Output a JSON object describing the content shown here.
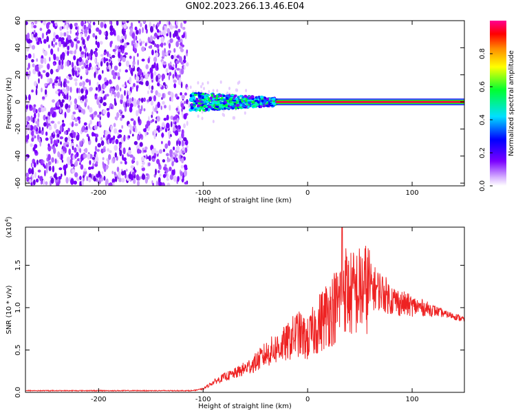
{
  "title": "GN02.2023.266.13.46.E04",
  "colors": {
    "snr_line": "#ee2222",
    "frame": "#000000"
  },
  "chart_data": [
    {
      "type": "heatmap",
      "title": "GN02.2023.266.13.46.E04",
      "xlabel": "Height of straight line (km)",
      "ylabel": "Frequency (Hz)",
      "xlim": [
        -270,
        150
      ],
      "ylim": [
        -62,
        60
      ],
      "xticks": [
        "-200",
        "-100",
        "0",
        "100"
      ],
      "yticks": [
        "-60",
        "-40",
        "-20",
        "0",
        "20",
        "40",
        "60"
      ],
      "colormap": "rainbow (white → purple → blue → cyan → green → yellow → orange → red → magenta)",
      "regions": [
        {
          "x_range": [
            -270,
            -115
          ],
          "freq_range": [
            -62,
            60
          ],
          "normalized_amplitude": 0.1
        },
        {
          "x_range": [
            -112,
            -30
          ],
          "freq_range": [
            -7,
            7
          ],
          "normalized_amplitude": 0.35
        },
        {
          "x_range": [
            -30,
            150
          ],
          "freq_range": [
            -1.5,
            1.5
          ],
          "normalized_amplitude": 0.95
        }
      ],
      "colorbar": {
        "label": "Normalized spectral amplitude",
        "range": [
          0,
          1
        ],
        "ticks": [
          "0.0",
          "0.2",
          "0.4",
          "0.6",
          "0.8"
        ]
      }
    },
    {
      "type": "line",
      "xlabel": "Height of straight line (km)",
      "ylabel": "SNR (10 * v/v)",
      "scale_label": "(x10",
      "scale_exponent": "4",
      "scale_suffix": ")",
      "xlim": [
        -270,
        150
      ],
      "ylim": [
        0,
        1.95
      ],
      "xticks": [
        "-200",
        "-100",
        "0",
        "100"
      ],
      "yticks": [
        "0.0",
        "0.5",
        "1.0",
        "1.5"
      ],
      "series": [
        {
          "x": [
            -270,
            -200,
            -110,
            -100,
            -90,
            -80,
            -70,
            -60,
            -50,
            -40,
            -30,
            -20,
            -10,
            0,
            10,
            20,
            30,
            33,
            40,
            50,
            60,
            70,
            80,
            90,
            100,
            110,
            120,
            130,
            140,
            150
          ],
          "y": [
            0.02,
            0.02,
            0.02,
            0.04,
            0.12,
            0.18,
            0.22,
            0.28,
            0.35,
            0.45,
            0.52,
            0.58,
            0.7,
            0.62,
            0.8,
            0.95,
            1.05,
            1.3,
            1.15,
            1.2,
            1.25,
            1.2,
            1.1,
            1.05,
            1.02,
            1.0,
            0.97,
            0.93,
            0.9,
            0.86
          ]
        }
      ]
    }
  ]
}
